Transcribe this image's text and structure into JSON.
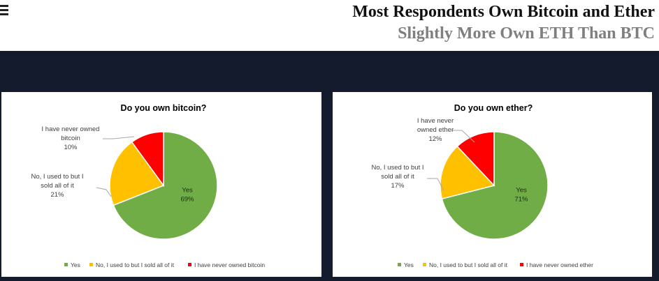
{
  "header": {
    "menu_icon": "hamburger-menu-icon",
    "title": "Most Respondents Own Bitcoin and Ether",
    "subtitle": "Slightly More Own ETH Than BTC"
  },
  "colors": {
    "band": "#141b2d",
    "yes": "#70ad47",
    "sold": "#ffc000",
    "never": "#ff0000"
  },
  "chart_data": [
    {
      "type": "pie",
      "title": "Do you own bitcoin?",
      "slices": [
        {
          "label_lines": [
            "Yes",
            "69%"
          ],
          "value": 69,
          "color": "#70ad47"
        },
        {
          "label_lines": [
            "No, I used to but I",
            "sold all of it",
            "21%"
          ],
          "value": 21,
          "color": "#ffc000"
        },
        {
          "label_lines": [
            "I have never owned",
            "bitcoin",
            "10%"
          ],
          "value": 10,
          "color": "#ff0000"
        }
      ],
      "legend": [
        "Yes",
        "No, I used to but I sold all of it",
        "I have never owned bitcoin"
      ],
      "legend_position": "bottom"
    },
    {
      "type": "pie",
      "title": "Do you own ether?",
      "slices": [
        {
          "label_lines": [
            "Yes",
            "71%"
          ],
          "value": 71,
          "color": "#70ad47"
        },
        {
          "label_lines": [
            "No, I used to but I",
            "sold all of it",
            "17%"
          ],
          "value": 17,
          "color": "#ffc000"
        },
        {
          "label_lines": [
            "I have never",
            "owned ether",
            "12%"
          ],
          "value": 12,
          "color": "#ff0000"
        }
      ],
      "legend": [
        "Yes",
        "No, I used to but I sold all of it",
        "I have never owned ether"
      ],
      "legend_position": "bottom"
    }
  ]
}
